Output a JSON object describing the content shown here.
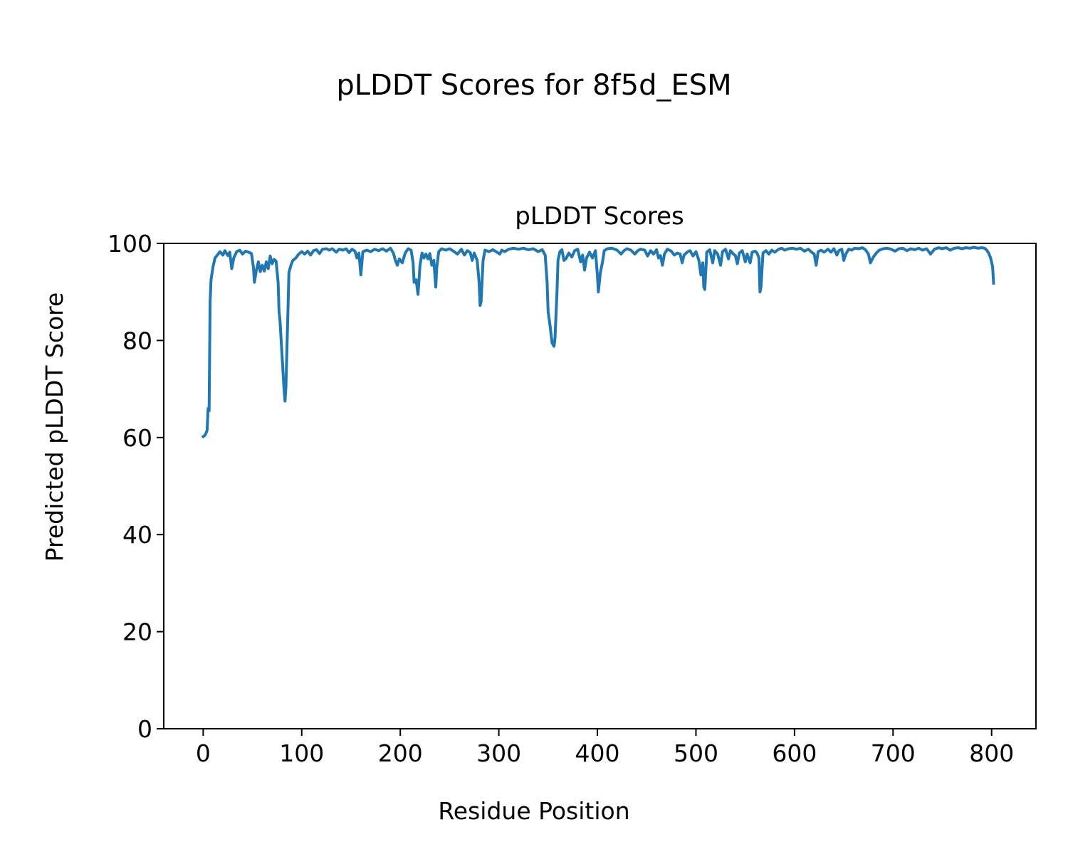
{
  "figure": {
    "suptitle": "pLDDT Scores for 8f5d_ESM"
  },
  "chart_data": {
    "type": "line",
    "title": "pLDDT Scores",
    "xlabel": "Residue Position",
    "ylabel": "Predicted pLDDT Score",
    "xlim": [
      -40,
      845
    ],
    "ylim": [
      0,
      100
    ],
    "xticks": [
      0,
      100,
      200,
      300,
      400,
      500,
      600,
      700,
      800
    ],
    "yticks": [
      0,
      20,
      40,
      60,
      80,
      100
    ],
    "grid": false,
    "legend": "none",
    "series": [
      {
        "color": "#1f77b4",
        "points": [
          [
            0,
            60.2
          ],
          [
            2,
            60.5
          ],
          [
            4,
            61.5
          ],
          [
            5,
            66.0
          ],
          [
            6,
            65.5
          ],
          [
            7,
            88.0
          ],
          [
            8,
            92.5
          ],
          [
            10,
            95.2
          ],
          [
            12,
            97.0
          ],
          [
            14,
            97.5
          ],
          [
            17,
            98.3
          ],
          [
            20,
            97.6
          ],
          [
            22,
            98.5
          ],
          [
            25,
            97.5
          ],
          [
            27,
            98.2
          ],
          [
            29,
            94.8
          ],
          [
            31,
            97.0
          ],
          [
            34,
            98.3
          ],
          [
            37,
            98.6
          ],
          [
            40,
            97.8
          ],
          [
            43,
            98.4
          ],
          [
            46,
            98.2
          ],
          [
            49,
            97.9
          ],
          [
            51,
            95.0
          ],
          [
            52,
            92.0
          ],
          [
            54,
            94.5
          ],
          [
            56,
            96.2
          ],
          [
            58,
            94.2
          ],
          [
            60,
            95.5
          ],
          [
            62,
            94.3
          ],
          [
            64,
            96.2
          ],
          [
            66,
            94.8
          ],
          [
            68,
            97.4
          ],
          [
            70,
            95.8
          ],
          [
            72,
            96.7
          ],
          [
            74,
            96.3
          ],
          [
            76,
            92.0
          ],
          [
            77,
            86.0
          ],
          [
            78,
            84.0
          ],
          [
            80,
            77.0
          ],
          [
            82,
            70.0
          ],
          [
            83,
            67.5
          ],
          [
            84,
            70.5
          ],
          [
            86,
            86.0
          ],
          [
            87,
            94.0
          ],
          [
            89,
            95.5
          ],
          [
            91,
            96.5
          ],
          [
            94,
            97.0
          ],
          [
            97,
            97.8
          ],
          [
            100,
            98.3
          ],
          [
            103,
            97.8
          ],
          [
            106,
            98.4
          ],
          [
            109,
            97.6
          ],
          [
            112,
            98.5
          ],
          [
            115,
            98.7
          ],
          [
            118,
            97.9
          ],
          [
            121,
            98.8
          ],
          [
            125,
            98.9
          ],
          [
            128,
            98.6
          ],
          [
            131,
            98.9
          ],
          [
            135,
            98.2
          ],
          [
            138,
            98.8
          ],
          [
            142,
            98.6
          ],
          [
            145,
            98.9
          ],
          [
            148,
            98.1
          ],
          [
            151,
            98.8
          ],
          [
            154,
            98.4
          ],
          [
            156,
            97.0
          ],
          [
            158,
            98.0
          ],
          [
            160,
            93.5
          ],
          [
            162,
            98.3
          ],
          [
            166,
            98.6
          ],
          [
            170,
            98.3
          ],
          [
            174,
            98.8
          ],
          [
            178,
            98.5
          ],
          [
            182,
            98.9
          ],
          [
            186,
            98.4
          ],
          [
            190,
            99.0
          ],
          [
            193,
            98.0
          ],
          [
            195,
            96.5
          ],
          [
            197,
            95.5
          ],
          [
            199,
            96.8
          ],
          [
            202,
            96.0
          ],
          [
            205,
            98.0
          ],
          [
            208,
            98.9
          ],
          [
            211,
            98.6
          ],
          [
            213,
            96.0
          ],
          [
            214,
            92.0
          ],
          [
            216,
            92.5
          ],
          [
            218,
            89.5
          ],
          [
            220,
            95.5
          ],
          [
            222,
            98.0
          ],
          [
            224,
            97.0
          ],
          [
            226,
            97.8
          ],
          [
            228,
            96.8
          ],
          [
            230,
            97.9
          ],
          [
            232,
            95.5
          ],
          [
            234,
            96.5
          ],
          [
            236,
            91.0
          ],
          [
            237,
            95.0
          ],
          [
            239,
            98.3
          ],
          [
            242,
            98.9
          ],
          [
            246,
            98.6
          ],
          [
            250,
            98.9
          ],
          [
            254,
            98.4
          ],
          [
            258,
            97.8
          ],
          [
            262,
            98.8
          ],
          [
            265,
            97.6
          ],
          [
            268,
            98.5
          ],
          [
            271,
            98.1
          ],
          [
            273,
            96.5
          ],
          [
            275,
            98.0
          ],
          [
            278,
            96.5
          ],
          [
            280,
            92.0
          ],
          [
            281,
            87.2
          ],
          [
            282,
            88.0
          ],
          [
            284,
            96.5
          ],
          [
            286,
            98.6
          ],
          [
            290,
            98.3
          ],
          [
            294,
            98.7
          ],
          [
            298,
            98.2
          ],
          [
            301,
            97.8
          ],
          [
            303,
            98.6
          ],
          [
            306,
            98.3
          ],
          [
            310,
            98.8
          ],
          [
            315,
            99.0
          ],
          [
            320,
            98.8
          ],
          [
            325,
            99.0
          ],
          [
            330,
            98.7
          ],
          [
            335,
            98.9
          ],
          [
            340,
            98.3
          ],
          [
            344,
            98.7
          ],
          [
            347,
            97.6
          ],
          [
            349,
            92.0
          ],
          [
            350,
            86.0
          ],
          [
            352,
            83.0
          ],
          [
            354,
            79.5
          ],
          [
            356,
            78.8
          ],
          [
            357,
            80.5
          ],
          [
            359,
            90.0
          ],
          [
            360,
            96.5
          ],
          [
            362,
            98.3
          ],
          [
            364,
            98.7
          ],
          [
            366,
            96.5
          ],
          [
            368,
            96.8
          ],
          [
            371,
            98.0
          ],
          [
            374,
            97.2
          ],
          [
            377,
            98.5
          ],
          [
            380,
            98.8
          ],
          [
            383,
            96.2
          ],
          [
            385,
            97.6
          ],
          [
            387,
            94.5
          ],
          [
            389,
            97.0
          ],
          [
            392,
            98.2
          ],
          [
            395,
            97.0
          ],
          [
            398,
            98.5
          ],
          [
            400,
            93.5
          ],
          [
            401,
            90.0
          ],
          [
            403,
            94.0
          ],
          [
            405,
            96.0
          ],
          [
            407,
            98.5
          ],
          [
            410,
            98.9
          ],
          [
            415,
            99.0
          ],
          [
            420,
            98.6
          ],
          [
            424,
            97.8
          ],
          [
            427,
            98.5
          ],
          [
            430,
            98.9
          ],
          [
            434,
            98.6
          ],
          [
            438,
            97.8
          ],
          [
            441,
            98.5
          ],
          [
            444,
            98.8
          ],
          [
            448,
            98.6
          ],
          [
            451,
            97.4
          ],
          [
            454,
            98.5
          ],
          [
            457,
            97.8
          ],
          [
            460,
            98.7
          ],
          [
            462,
            97.0
          ],
          [
            464,
            97.5
          ],
          [
            466,
            95.5
          ],
          [
            468,
            97.8
          ],
          [
            471,
            98.8
          ],
          [
            475,
            98.4
          ],
          [
            478,
            97.6
          ],
          [
            481,
            98.0
          ],
          [
            484,
            97.8
          ],
          [
            486,
            96.0
          ],
          [
            488,
            97.6
          ],
          [
            491,
            98.2
          ],
          [
            494,
            98.5
          ],
          [
            497,
            97.4
          ],
          [
            500,
            98.3
          ],
          [
            503,
            96.5
          ],
          [
            505,
            93.5
          ],
          [
            507,
            96.0
          ],
          [
            508,
            91.0
          ],
          [
            509,
            90.5
          ],
          [
            511,
            98.2
          ],
          [
            514,
            98.7
          ],
          [
            517,
            96.0
          ],
          [
            519,
            98.5
          ],
          [
            522,
            97.8
          ],
          [
            525,
            95.5
          ],
          [
            527,
            98.3
          ],
          [
            530,
            98.8
          ],
          [
            533,
            96.8
          ],
          [
            535,
            98.5
          ],
          [
            538,
            97.8
          ],
          [
            540,
            97.5
          ],
          [
            542,
            95.8
          ],
          [
            544,
            98.0
          ],
          [
            547,
            98.5
          ],
          [
            550,
            96.2
          ],
          [
            552,
            97.8
          ],
          [
            555,
            96.0
          ],
          [
            557,
            98.2
          ],
          [
            560,
            98.4
          ],
          [
            562,
            98.0
          ],
          [
            564,
            97.0
          ],
          [
            565,
            90.0
          ],
          [
            566,
            91.0
          ],
          [
            568,
            98.0
          ],
          [
            571,
            98.5
          ],
          [
            574,
            97.8
          ],
          [
            577,
            98.6
          ],
          [
            580,
            98.2
          ],
          [
            584,
            98.8
          ],
          [
            587,
            99.0
          ],
          [
            590,
            98.6
          ],
          [
            594,
            98.9
          ],
          [
            598,
            99.0
          ],
          [
            602,
            98.8
          ],
          [
            606,
            99.0
          ],
          [
            610,
            98.4
          ],
          [
            614,
            98.8
          ],
          [
            618,
            98.1
          ],
          [
            620,
            97.8
          ],
          [
            622,
            95.5
          ],
          [
            624,
            98.3
          ],
          [
            627,
            98.6
          ],
          [
            630,
            98.2
          ],
          [
            634,
            98.8
          ],
          [
            637,
            98.2
          ],
          [
            640,
            98.9
          ],
          [
            643,
            97.6
          ],
          [
            645,
            98.5
          ],
          [
            648,
            98.8
          ],
          [
            650,
            96.5
          ],
          [
            652,
            97.8
          ],
          [
            655,
            98.8
          ],
          [
            658,
            98.6
          ],
          [
            661,
            99.0
          ],
          [
            665,
            98.9
          ],
          [
            669,
            99.1
          ],
          [
            672,
            98.7
          ],
          [
            675,
            97.8
          ],
          [
            677,
            96.0
          ],
          [
            680,
            97.2
          ],
          [
            683,
            98.0
          ],
          [
            686,
            98.6
          ],
          [
            690,
            98.9
          ],
          [
            694,
            99.0
          ],
          [
            698,
            98.8
          ],
          [
            702,
            98.4
          ],
          [
            706,
            98.9
          ],
          [
            710,
            99.0
          ],
          [
            714,
            98.5
          ],
          [
            718,
            98.9
          ],
          [
            722,
            98.7
          ],
          [
            726,
            99.0
          ],
          [
            730,
            98.6
          ],
          [
            734,
            98.9
          ],
          [
            738,
            97.8
          ],
          [
            742,
            98.8
          ],
          [
            746,
            99.1
          ],
          [
            750,
            98.9
          ],
          [
            754,
            99.1
          ],
          [
            758,
            98.6
          ],
          [
            762,
            99.0
          ],
          [
            766,
            99.1
          ],
          [
            770,
            98.9
          ],
          [
            774,
            99.1
          ],
          [
            778,
            99.0
          ],
          [
            782,
            99.2
          ],
          [
            786,
            99.0
          ],
          [
            790,
            99.1
          ],
          [
            793,
            99.0
          ],
          [
            795,
            98.6
          ],
          [
            797,
            98.0
          ],
          [
            799,
            97.0
          ],
          [
            801,
            95.2
          ],
          [
            802,
            91.8
          ]
        ]
      }
    ]
  }
}
